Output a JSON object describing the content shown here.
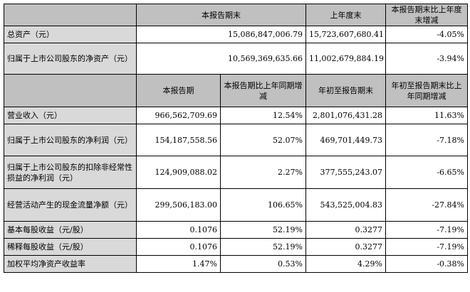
{
  "top": {
    "headers": [
      "",
      "本报告期末",
      "上年度末",
      "本报告期末比上年度末增减"
    ],
    "rows": [
      {
        "label": "总资产（元）",
        "current": "15,086,847,006.79",
        "prior": "15,723,607,680.41",
        "change": "-4.05%"
      },
      {
        "label": "归属于上市公司股东的净资产（元）",
        "current": "10,569,369,635.66",
        "prior": "11,002,679,884.19",
        "change": "-3.94%"
      }
    ]
  },
  "bottom": {
    "headers": [
      "",
      "本报告期",
      "本报告期比上年同期增减",
      "年初至报告期末",
      "年初至报告期末比上年同期增减"
    ],
    "rows": [
      {
        "label": "营业收入（元）",
        "period": "966,562,709.69",
        "period_change": "12.54%",
        "ytd": "2,801,076,431.28",
        "ytd_change": "11.63%"
      },
      {
        "label": "归属于上市公司股东的净利润（元）",
        "period": "154,187,558.56",
        "period_change": "52.07%",
        "ytd": "469,701,449.73",
        "ytd_change": "-7.18%"
      },
      {
        "label": "归属于上市公司股东的扣除非经常性损益的净利润（元）",
        "period": "124,909,088.02",
        "period_change": "2.27%",
        "ytd": "377,555,243.07",
        "ytd_change": "-6.65%"
      },
      {
        "label": "经营活动产生的现金流量净额（元）",
        "period": "299,506,183.00",
        "period_change": "106.65%",
        "ytd": "543,525,004.83",
        "ytd_change": "-27.84%"
      },
      {
        "label": "基本每股收益（元/股）",
        "period": "0.1076",
        "period_change": "52.19%",
        "ytd": "0.3277",
        "ytd_change": "-7.19%"
      },
      {
        "label": "稀释每股收益（元/股）",
        "period": "0.1076",
        "period_change": "52.19%",
        "ytd": "0.3277",
        "ytd_change": "-7.19%"
      },
      {
        "label": "加权平均净资产收益率",
        "period": "1.47%",
        "period_change": "0.53%",
        "ytd": "4.29%",
        "ytd_change": "-0.38%"
      }
    ]
  }
}
